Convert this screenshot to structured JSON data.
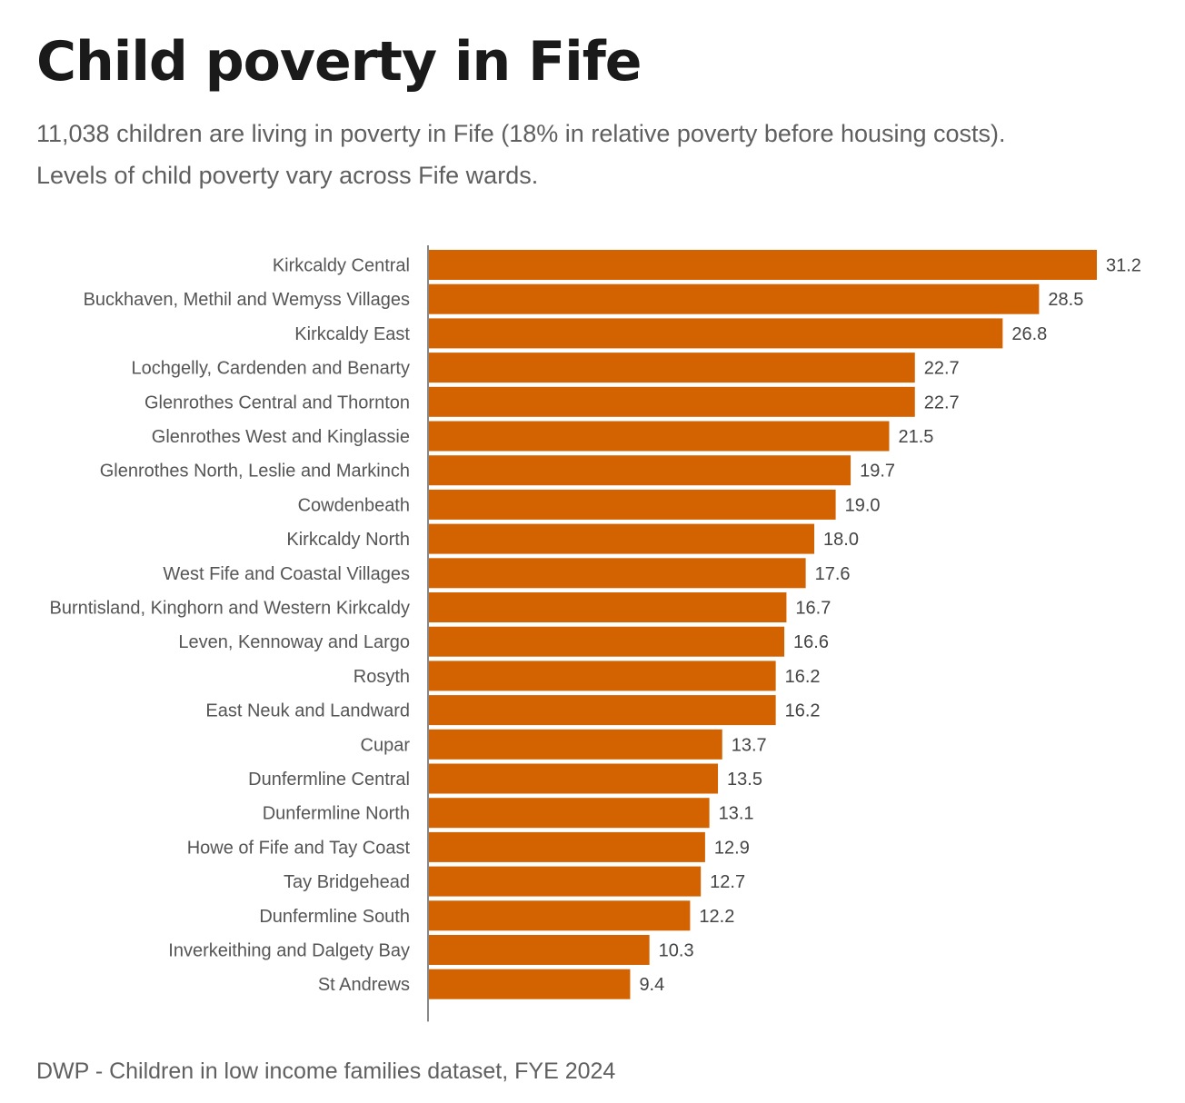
{
  "header": {
    "title": "Child poverty in Fife",
    "subtitle_lines": [
      "11,038 children are living in poverty in Fife (18% in relative poverty before housing costs).",
      "Levels of child poverty vary across Fife wards."
    ]
  },
  "footer": {
    "source": "DWP - Children in low income families dataset, FYE 2024"
  },
  "colors": {
    "bar": "#d26300",
    "label_text": "#555555",
    "value_text": "#444444",
    "axis": "#888888"
  },
  "chart_data": {
    "type": "bar",
    "orientation": "horizontal",
    "title": "Child poverty in Fife",
    "xlabel": "",
    "ylabel": "",
    "unit": "%",
    "grid": false,
    "legend": "none",
    "xlim": [
      0,
      31.2
    ],
    "categories": [
      "Kirkcaldy Central",
      "Buckhaven, Methil and Wemyss Villages",
      "Kirkcaldy East",
      "Lochgelly, Cardenden and Benarty",
      "Glenrothes Central and Thornton",
      "Glenrothes West and Kinglassie",
      "Glenrothes North, Leslie and Markinch",
      "Cowdenbeath",
      "Kirkcaldy North",
      "West Fife and Coastal Villages",
      "Burntisland, Kinghorn and Western Kirkcaldy",
      "Leven, Kennoway and Largo",
      "Rosyth",
      "East Neuk and Landward",
      "Cupar",
      "Dunfermline Central",
      "Dunfermline North",
      "Howe of Fife and Tay Coast",
      "Tay Bridgehead",
      "Dunfermline South",
      "Inverkeithing and Dalgety Bay",
      "St Andrews"
    ],
    "values": [
      31.2,
      28.5,
      26.8,
      22.7,
      22.7,
      21.5,
      19.7,
      19.0,
      18.0,
      17.6,
      16.7,
      16.6,
      16.2,
      16.2,
      13.7,
      13.5,
      13.1,
      12.9,
      12.7,
      12.2,
      10.3,
      9.4
    ],
    "value_labels": [
      "31.2",
      "28.5",
      "26.8",
      "22.7",
      "22.7",
      "21.5",
      "19.7",
      "19.0",
      "18.0",
      "17.6",
      "16.7",
      "16.6",
      "16.2",
      "16.2",
      "13.7",
      "13.5",
      "13.1",
      "12.9",
      "12.7",
      "12.2",
      "10.3",
      "9.4"
    ]
  }
}
